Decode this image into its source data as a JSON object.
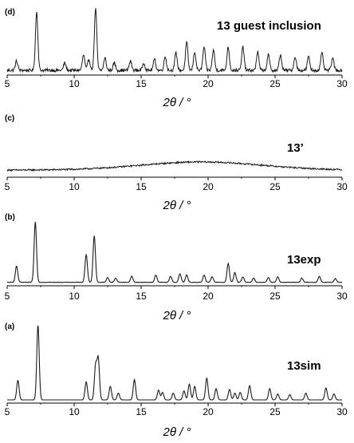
{
  "chart_data": [
    {
      "type": "line",
      "panel_label": "(d)",
      "annotation": "13 guest inclusion",
      "xlabel": "2θ / °",
      "xlim": [
        5,
        30
      ],
      "x_ticks": [
        5,
        10,
        15,
        20,
        25,
        30
      ],
      "grid": false,
      "y_axis_shown": false,
      "baseline": 0.18,
      "noise": 0.05,
      "peaks": [
        {
          "x": 5.7,
          "h": 0.15
        },
        {
          "x": 7.2,
          "h": 0.95
        },
        {
          "x": 9.3,
          "h": 0.12
        },
        {
          "x": 10.7,
          "h": 0.25
        },
        {
          "x": 11.1,
          "h": 0.18
        },
        {
          "x": 11.6,
          "h": 1.0
        },
        {
          "x": 12.3,
          "h": 0.2
        },
        {
          "x": 13.0,
          "h": 0.12
        },
        {
          "x": 14.2,
          "h": 0.15
        },
        {
          "x": 15.2,
          "h": 0.12
        },
        {
          "x": 16.0,
          "h": 0.18
        },
        {
          "x": 16.8,
          "h": 0.22
        },
        {
          "x": 17.6,
          "h": 0.28
        },
        {
          "x": 18.4,
          "h": 0.45
        },
        {
          "x": 19.0,
          "h": 0.3
        },
        {
          "x": 19.7,
          "h": 0.38
        },
        {
          "x": 20.4,
          "h": 0.33
        },
        {
          "x": 21.5,
          "h": 0.38
        },
        {
          "x": 22.6,
          "h": 0.38
        },
        {
          "x": 23.7,
          "h": 0.3
        },
        {
          "x": 24.5,
          "h": 0.25
        },
        {
          "x": 25.4,
          "h": 0.25
        },
        {
          "x": 26.5,
          "h": 0.22
        },
        {
          "x": 27.5,
          "h": 0.22
        },
        {
          "x": 28.5,
          "h": 0.28
        },
        {
          "x": 29.3,
          "h": 0.2
        }
      ]
    },
    {
      "type": "line",
      "panel_label": "(c)",
      "annotation": "13’",
      "xlabel": "2θ / °",
      "xlim": [
        5,
        30
      ],
      "x_ticks": [
        5,
        10,
        15,
        20,
        25,
        30
      ],
      "grid": false,
      "y_axis_shown": false,
      "baseline": 0.0,
      "noise": 0.04,
      "amorphous_hump": {
        "center": 19.5,
        "width": 4.5,
        "height": 0.22
      },
      "peaks": []
    },
    {
      "type": "line",
      "panel_label": "(b)",
      "annotation": "13exp",
      "xlabel": "2θ / °",
      "xlim": [
        5,
        30
      ],
      "x_ticks": [
        5,
        10,
        15,
        20,
        25,
        30
      ],
      "grid": false,
      "y_axis_shown": false,
      "baseline": 0.02,
      "noise": 0.008,
      "peaks": [
        {
          "x": 5.7,
          "h": 0.27
        },
        {
          "x": 7.1,
          "h": 1.0
        },
        {
          "x": 10.9,
          "h": 0.46
        },
        {
          "x": 11.5,
          "h": 0.77
        },
        {
          "x": 12.5,
          "h": 0.08
        },
        {
          "x": 13.1,
          "h": 0.07
        },
        {
          "x": 14.3,
          "h": 0.1
        },
        {
          "x": 16.1,
          "h": 0.12
        },
        {
          "x": 17.2,
          "h": 0.1
        },
        {
          "x": 17.9,
          "h": 0.14
        },
        {
          "x": 18.4,
          "h": 0.12
        },
        {
          "x": 19.7,
          "h": 0.12
        },
        {
          "x": 20.3,
          "h": 0.09
        },
        {
          "x": 21.5,
          "h": 0.31
        },
        {
          "x": 22.0,
          "h": 0.16
        },
        {
          "x": 22.6,
          "h": 0.09
        },
        {
          "x": 23.4,
          "h": 0.07
        },
        {
          "x": 24.5,
          "h": 0.08
        },
        {
          "x": 25.2,
          "h": 0.09
        },
        {
          "x": 27.0,
          "h": 0.07
        },
        {
          "x": 28.3,
          "h": 0.1
        },
        {
          "x": 29.5,
          "h": 0.06
        }
      ]
    },
    {
      "type": "line",
      "panel_label": "(a)",
      "annotation": "13sim",
      "xlabel": "2θ / °",
      "xlim": [
        5,
        30
      ],
      "x_ticks": [
        5,
        10,
        15,
        20,
        25,
        30
      ],
      "grid": false,
      "y_axis_shown": false,
      "baseline": 0.0,
      "noise": 0.0,
      "peaks": [
        {
          "x": 5.8,
          "h": 0.26
        },
        {
          "x": 7.3,
          "h": 1.0
        },
        {
          "x": 10.9,
          "h": 0.24
        },
        {
          "x": 11.6,
          "h": 0.45
        },
        {
          "x": 11.8,
          "h": 0.54
        },
        {
          "x": 12.7,
          "h": 0.18
        },
        {
          "x": 13.3,
          "h": 0.09
        },
        {
          "x": 14.5,
          "h": 0.27
        },
        {
          "x": 16.3,
          "h": 0.13
        },
        {
          "x": 16.6,
          "h": 0.1
        },
        {
          "x": 17.4,
          "h": 0.09
        },
        {
          "x": 18.2,
          "h": 0.12
        },
        {
          "x": 18.6,
          "h": 0.21
        },
        {
          "x": 19.0,
          "h": 0.18
        },
        {
          "x": 19.9,
          "h": 0.29
        },
        {
          "x": 20.6,
          "h": 0.15
        },
        {
          "x": 21.6,
          "h": 0.14
        },
        {
          "x": 22.0,
          "h": 0.09
        },
        {
          "x": 22.4,
          "h": 0.1
        },
        {
          "x": 23.1,
          "h": 0.19
        },
        {
          "x": 24.6,
          "h": 0.15
        },
        {
          "x": 25.2,
          "h": 0.08
        },
        {
          "x": 26.1,
          "h": 0.07
        },
        {
          "x": 27.3,
          "h": 0.09
        },
        {
          "x": 28.8,
          "h": 0.16
        },
        {
          "x": 29.4,
          "h": 0.08
        }
      ]
    }
  ]
}
